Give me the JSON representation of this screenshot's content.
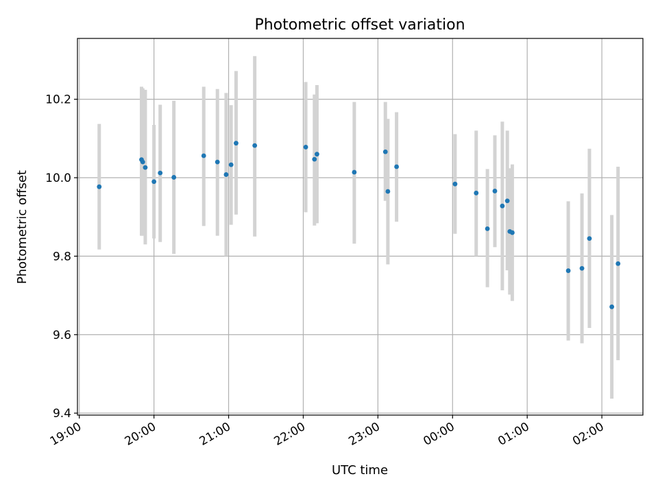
{
  "chart_data": {
    "type": "scatter",
    "title": "Photometric offset variation",
    "xlabel": "UTC time",
    "ylabel": "Photometric offset",
    "x_tick_labels": [
      "19:00",
      "20:00",
      "21:00",
      "22:00",
      "23:00",
      "00:00",
      "01:00",
      "02:00"
    ],
    "y_tick_labels": [
      "9.4",
      "9.6",
      "9.8",
      "10.0",
      "10.2"
    ],
    "y_ticks": [
      9.4,
      9.6,
      9.8,
      10.0,
      10.2
    ],
    "xlim": [
      "19:00",
      "02:33"
    ],
    "ylim": [
      9.395,
      10.355
    ],
    "grid": true,
    "colors": {
      "point": "#1f77b4",
      "errorbar": "#d3d3d3"
    },
    "series": [
      {
        "points": [
          {
            "x": "19:16",
            "y": 9.977,
            "ylo": 9.817,
            "yhi": 10.137
          },
          {
            "x": "19:50",
            "y": 10.046,
            "ylo": 9.852,
            "yhi": 10.232
          },
          {
            "x": "19:51",
            "y": 10.04,
            "ylo": 9.852,
            "yhi": 10.228
          },
          {
            "x": "19:53",
            "y": 10.026,
            "ylo": 9.83,
            "yhi": 10.224
          },
          {
            "x": "20:00",
            "y": 9.99,
            "ylo": 9.845,
            "yhi": 10.135
          },
          {
            "x": "20:05",
            "y": 10.012,
            "ylo": 9.836,
            "yhi": 10.186
          },
          {
            "x": "20:16",
            "y": 10.001,
            "ylo": 9.806,
            "yhi": 10.196
          },
          {
            "x": "20:40",
            "y": 10.056,
            "ylo": 9.877,
            "yhi": 10.232
          },
          {
            "x": "20:51",
            "y": 10.04,
            "ylo": 9.852,
            "yhi": 10.226
          },
          {
            "x": "20:58",
            "y": 10.008,
            "ylo": 9.8,
            "yhi": 10.216
          },
          {
            "x": "21:02",
            "y": 10.033,
            "ylo": 9.88,
            "yhi": 10.185
          },
          {
            "x": "21:06",
            "y": 10.088,
            "ylo": 9.906,
            "yhi": 10.272
          },
          {
            "x": "21:21",
            "y": 10.082,
            "ylo": 9.85,
            "yhi": 10.31
          },
          {
            "x": "22:02",
            "y": 10.078,
            "ylo": 9.912,
            "yhi": 10.244
          },
          {
            "x": "22:09",
            "y": 10.047,
            "ylo": 9.878,
            "yhi": 10.212
          },
          {
            "x": "22:11",
            "y": 10.06,
            "ylo": 9.884,
            "yhi": 10.236
          },
          {
            "x": "22:41",
            "y": 10.014,
            "ylo": 9.832,
            "yhi": 10.193
          },
          {
            "x": "23:06",
            "y": 10.066,
            "ylo": 9.941,
            "yhi": 10.193
          },
          {
            "x": "23:08",
            "y": 9.965,
            "ylo": 9.779,
            "yhi": 10.15
          },
          {
            "x": "23:15",
            "y": 10.028,
            "ylo": 9.888,
            "yhi": 10.167
          },
          {
            "x": "00:02",
            "y": 9.984,
            "ylo": 9.857,
            "yhi": 10.111
          },
          {
            "x": "00:19",
            "y": 9.961,
            "ylo": 9.8,
            "yhi": 10.12
          },
          {
            "x": "00:28",
            "y": 9.87,
            "ylo": 9.721,
            "yhi": 10.022
          },
          {
            "x": "00:34",
            "y": 9.966,
            "ylo": 9.823,
            "yhi": 10.108
          },
          {
            "x": "00:40",
            "y": 9.928,
            "ylo": 9.713,
            "yhi": 10.143
          },
          {
            "x": "00:44",
            "y": 9.941,
            "ylo": 9.764,
            "yhi": 10.12
          },
          {
            "x": "00:46",
            "y": 9.863,
            "ylo": 9.702,
            "yhi": 10.024
          },
          {
            "x": "00:48",
            "y": 9.86,
            "ylo": 9.686,
            "yhi": 10.034
          },
          {
            "x": "01:33",
            "y": 9.763,
            "ylo": 9.585,
            "yhi": 9.94
          },
          {
            "x": "01:44",
            "y": 9.769,
            "ylo": 9.578,
            "yhi": 9.96
          },
          {
            "x": "01:50",
            "y": 9.845,
            "ylo": 9.617,
            "yhi": 10.074
          },
          {
            "x": "02:08",
            "y": 9.671,
            "ylo": 9.437,
            "yhi": 9.905
          },
          {
            "x": "02:13",
            "y": 9.781,
            "ylo": 9.535,
            "yhi": 10.028
          }
        ]
      }
    ]
  }
}
